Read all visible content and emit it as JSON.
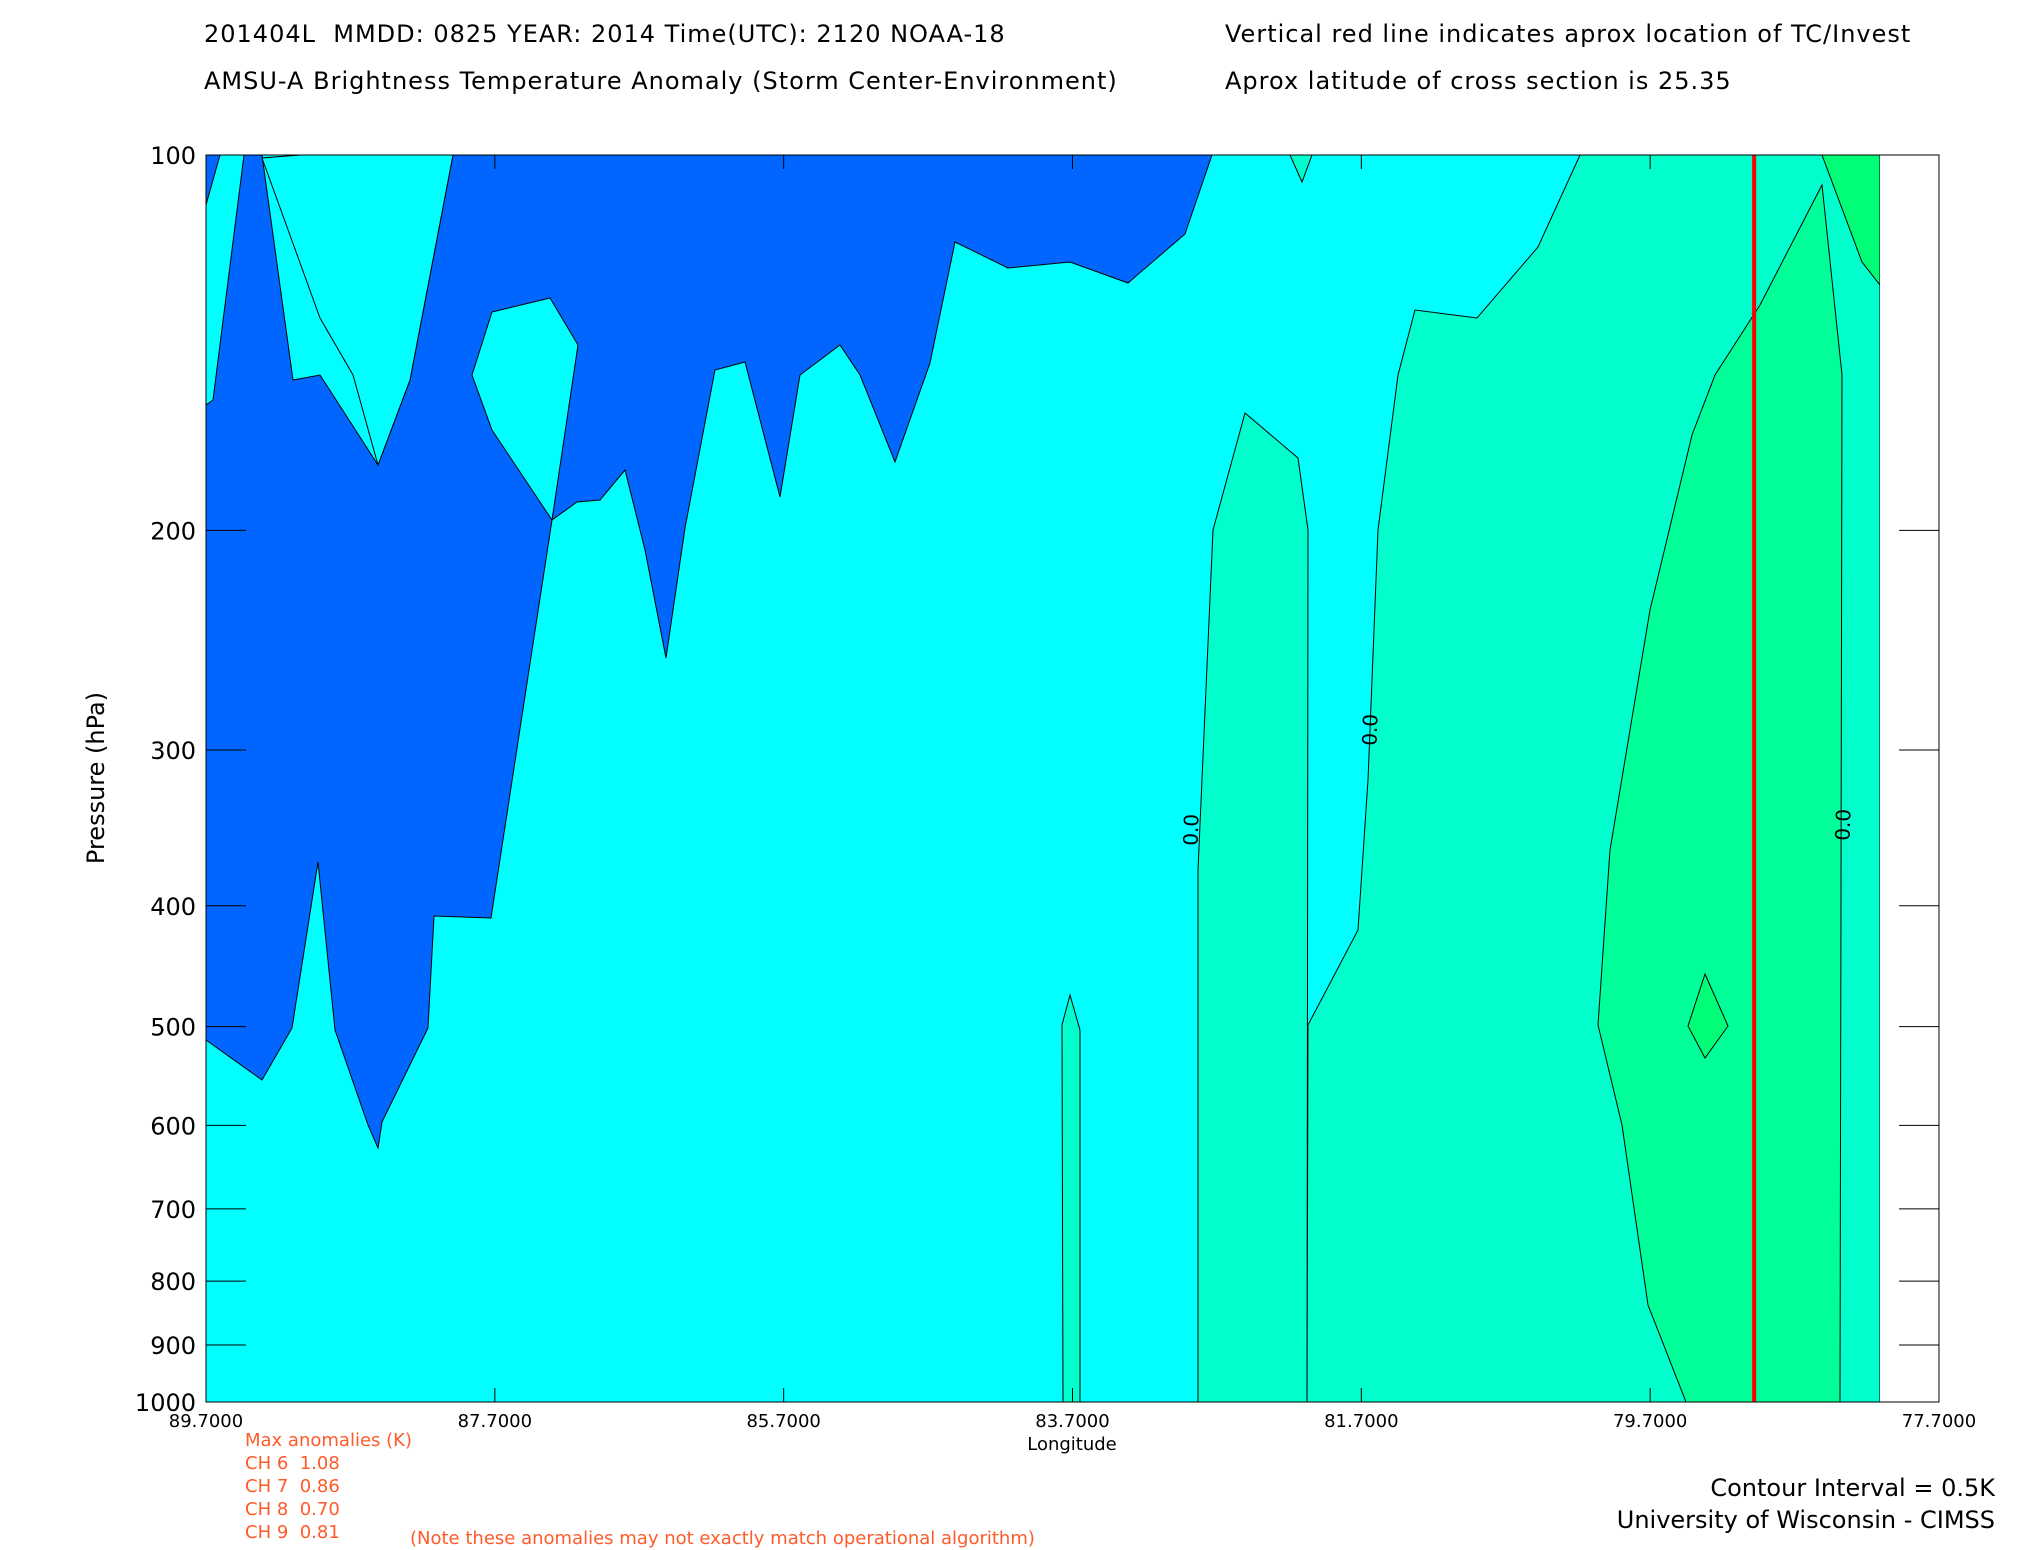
{
  "header": {
    "line1_left": "201404L  MMDD: 0825 YEAR: 2014 Time(UTC): 2120 NOAA-18",
    "line2_left": "AMSU-A Brightness Temperature Anomaly (Storm Center-Environment)",
    "line1_right": "Vertical red line indicates aprox location of TC/Invest",
    "line2_right": "Aprox latitude of cross section is 25.35"
  },
  "chart_data": {
    "type": "contour",
    "xlabel": "Longitude",
    "ylabel": "Pressure (hPa)",
    "xlim": [
      89.7,
      77.7
    ],
    "ylim": [
      100,
      1000
    ],
    "y_scale": "log",
    "x_ticks": [
      "89.7000",
      "87.7000",
      "85.7000",
      "83.7000",
      "81.7000",
      "79.7000",
      "77.7000"
    ],
    "y_ticks": [
      "100",
      "200",
      "300",
      "400",
      "500",
      "600",
      "700",
      "800",
      "900",
      "1000"
    ],
    "contour_labels": [
      "0.0",
      "0.0",
      "0.0"
    ],
    "tc_longitude": 78.98,
    "colors": {
      "below_zero": "#0066ff",
      "near_zero": "#00ffff",
      "level_0_5": "#00ffcc",
      "level_1_0": "#00ff99",
      "level_1_5": "#00ff77",
      "tc_line": "#ff0000"
    }
  },
  "anomalies": {
    "title": "Max anomalies (K)",
    "channels": [
      {
        "label": "CH 6",
        "value": "1.08"
      },
      {
        "label": "CH 7",
        "value": "0.86"
      },
      {
        "label": "CH 8",
        "value": "0.70"
      },
      {
        "label": "CH 9",
        "value": "0.81"
      }
    ],
    "note": "(Note these anomalies may not exactly match operational algorithm)"
  },
  "footer": {
    "contour_interval": "Contour Interval = 0.5K",
    "credit": "University of Wisconsin - CIMSS"
  }
}
